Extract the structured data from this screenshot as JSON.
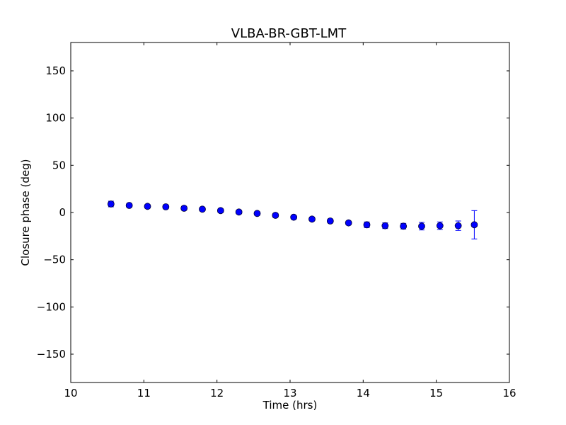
{
  "chart_data": {
    "type": "scatter",
    "title": "VLBA-BR-GBT-LMT",
    "xlabel": "Time (hrs)",
    "ylabel": "Closure phase (deg)",
    "xlim": [
      10,
      16
    ],
    "ylim": [
      -180,
      180
    ],
    "xticks": [
      10,
      11,
      12,
      13,
      14,
      15,
      16
    ],
    "xtick_labels": [
      "10",
      "11",
      "12",
      "13",
      "14",
      "15",
      "16"
    ],
    "yticks": [
      150,
      100,
      50,
      0,
      -50,
      -100,
      -150
    ],
    "ytick_labels": [
      "150",
      "100",
      "50",
      "0",
      "−50",
      "−100",
      "−150"
    ],
    "grid": false,
    "legend": "none",
    "series": [
      {
        "marker": "circle",
        "color": "#0000ff",
        "errorbars": true,
        "x": [
          10.55,
          10.8,
          11.05,
          11.3,
          11.55,
          11.8,
          12.05,
          12.3,
          12.55,
          12.8,
          13.05,
          13.3,
          13.55,
          13.8,
          14.05,
          14.3,
          14.55,
          14.8,
          15.05,
          15.3,
          15.52
        ],
        "y": [
          9,
          7.5,
          6.5,
          6,
          4.5,
          3.5,
          2,
          0.5,
          -1,
          -3,
          -5,
          -7,
          -9,
          -11,
          -13,
          -14,
          -14.5,
          -14.5,
          -14,
          -14,
          -13
        ],
        "yerr": [
          3,
          2,
          2,
          2,
          2,
          2,
          2,
          2,
          2,
          2,
          2,
          2,
          2,
          2,
          3,
          3,
          3,
          4,
          4,
          5,
          15
        ]
      }
    ]
  }
}
